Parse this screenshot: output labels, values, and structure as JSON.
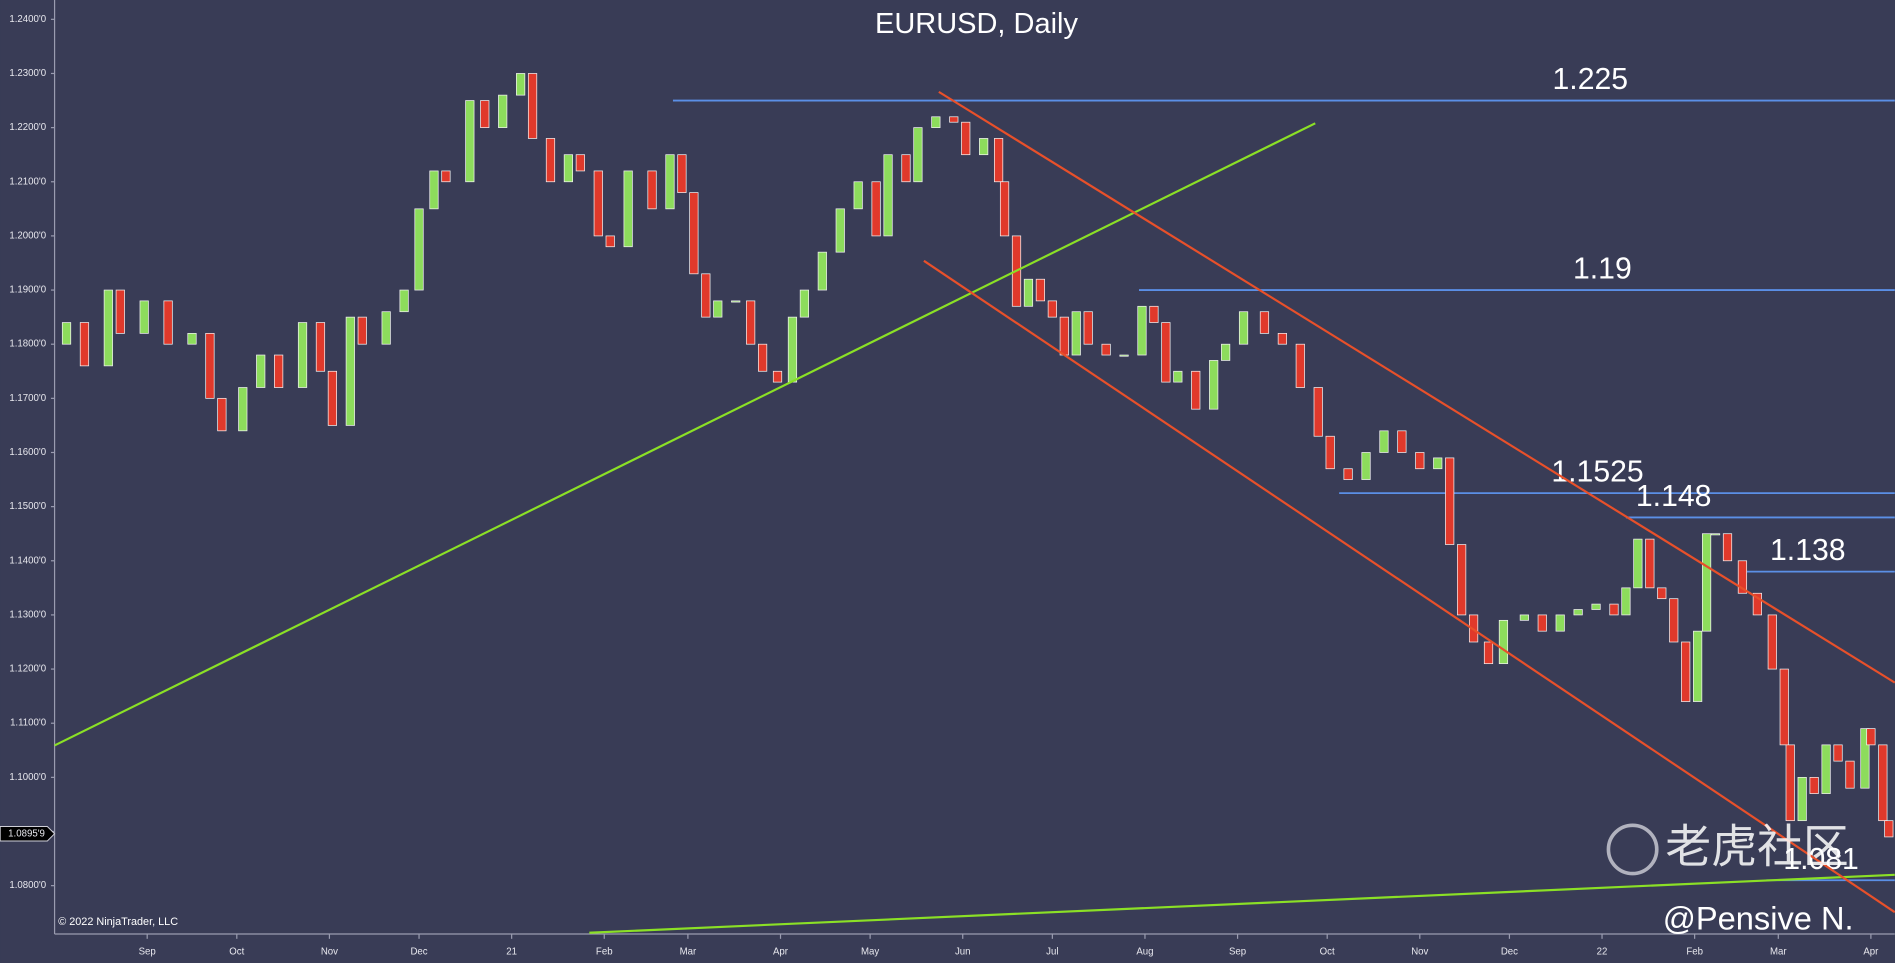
{
  "chart_data": {
    "type": "candlestick",
    "title": "EURUSD, Daily",
    "copyright": "© 2022 NinjaTrader, LLC",
    "watermark": "老虎社区",
    "author": "@Pensive N.",
    "up_color": "#8ddc5c",
    "down_color": "#e0392b",
    "level_color": "#5b8fe6",
    "x": [
      -27,
      -21,
      -13,
      -9,
      -1,
      7,
      15,
      21,
      25,
      32,
      38,
      44,
      52,
      58,
      62,
      68,
      72,
      80,
      86,
      91,
      96,
      100,
      108,
      113,
      119,
      125,
      129,
      135,
      141,
      145,
      151,
      155,
      161,
      169,
      175,
      179,
      183,
      187,
      191,
      197,
      202,
      206,
      211,
      216,
      220,
      226,
      232,
      238,
      244,
      248,
      254,
      258,
      264,
      270,
      274,
      280,
      285,
      287,
      291,
      295,
      299,
      303,
      307,
      311,
      315,
      321,
      327,
      333,
      337,
      341,
      345,
      351,
      357,
      361,
      367,
      374,
      380,
      386,
      392,
      396,
      402,
      408,
      414,
      420,
      426,
      432,
      436,
      440,
      444,
      449,
      454,
      461,
      467,
      473,
      479,
      485,
      491,
      495,
      499,
      503,
      507,
      511,
      515,
      519,
      522,
      525,
      529,
      534,
      539,
      544,
      548,
      550,
      554,
      558,
      562,
      566,
      570,
      575,
      577,
      581,
      583
    ],
    "open": [
      1.18,
      1.184,
      1.176,
      1.19,
      1.182,
      1.188,
      1.18,
      1.182,
      1.17,
      1.164,
      1.172,
      1.178,
      1.172,
      1.184,
      1.175,
      1.165,
      1.185,
      1.18,
      1.186,
      1.19,
      1.205,
      1.212,
      1.21,
      1.225,
      1.22,
      1.226,
      1.23,
      1.218,
      1.21,
      1.215,
      1.212,
      1.2,
      1.198,
      1.212,
      1.205,
      1.215,
      1.208,
      1.193,
      1.185,
      1.188,
      1.188,
      1.18,
      1.175,
      1.173,
      1.185,
      1.19,
      1.197,
      1.205,
      1.21,
      1.2,
      1.215,
      1.21,
      1.22,
      1.222,
      1.221,
      1.215,
      1.218,
      1.21,
      1.2,
      1.187,
      1.192,
      1.188,
      1.185,
      1.178,
      1.186,
      1.18,
      1.178,
      1.178,
      1.187,
      1.184,
      1.173,
      1.175,
      1.168,
      1.177,
      1.18,
      1.186,
      1.182,
      1.18,
      1.172,
      1.163,
      1.157,
      1.155,
      1.16,
      1.164,
      1.16,
      1.157,
      1.159,
      1.143,
      1.13,
      1.125,
      1.121,
      1.129,
      1.13,
      1.127,
      1.13,
      1.131,
      1.132,
      1.13,
      1.135,
      1.144,
      1.135,
      1.133,
      1.125,
      1.114,
      1.127,
      1.145,
      1.145,
      1.14,
      1.134,
      1.13,
      1.12,
      1.106,
      1.092,
      1.1,
      1.097,
      1.106,
      1.103,
      1.098,
      1.109,
      1.106,
      1.092
    ],
    "close": [
      1.184,
      1.176,
      1.19,
      1.182,
      1.188,
      1.18,
      1.182,
      1.17,
      1.164,
      1.172,
      1.178,
      1.172,
      1.184,
      1.175,
      1.165,
      1.185,
      1.18,
      1.186,
      1.19,
      1.205,
      1.212,
      1.21,
      1.225,
      1.22,
      1.226,
      1.23,
      1.218,
      1.21,
      1.215,
      1.212,
      1.2,
      1.198,
      1.212,
      1.205,
      1.215,
      1.208,
      1.193,
      1.185,
      1.188,
      1.188,
      1.18,
      1.175,
      1.173,
      1.185,
      1.19,
      1.197,
      1.205,
      1.21,
      1.2,
      1.215,
      1.21,
      1.22,
      1.222,
      1.221,
      1.215,
      1.218,
      1.21,
      1.2,
      1.187,
      1.192,
      1.188,
      1.185,
      1.178,
      1.186,
      1.18,
      1.178,
      1.178,
      1.187,
      1.184,
      1.173,
      1.175,
      1.168,
      1.177,
      1.18,
      1.186,
      1.182,
      1.18,
      1.172,
      1.163,
      1.157,
      1.155,
      1.16,
      1.164,
      1.16,
      1.157,
      1.159,
      1.143,
      1.13,
      1.125,
      1.121,
      1.129,
      1.13,
      1.127,
      1.13,
      1.131,
      1.132,
      1.13,
      1.135,
      1.144,
      1.135,
      1.133,
      1.125,
      1.114,
      1.127,
      1.145,
      1.145,
      1.14,
      1.134,
      1.13,
      1.12,
      1.106,
      1.092,
      1.1,
      1.097,
      1.106,
      1.103,
      1.098,
      1.109,
      1.106,
      1.092,
      1.089
    ],
    "xlim": [
      -31,
      585
    ],
    "ylim": [
      1.07107,
      1.24357
    ],
    "xticks": [
      {
        "value": 0,
        "label": "Sep"
      },
      {
        "value": 30,
        "label": "Oct"
      },
      {
        "value": 61,
        "label": "Nov"
      },
      {
        "value": 91,
        "label": "Dec"
      },
      {
        "value": 122,
        "label": "21"
      },
      {
        "value": 153,
        "label": "Feb"
      },
      {
        "value": 181,
        "label": "Mar"
      },
      {
        "value": 212,
        "label": "Apr"
      },
      {
        "value": 242,
        "label": "May"
      },
      {
        "value": 273,
        "label": "Jun"
      },
      {
        "value": 303,
        "label": "Jul"
      },
      {
        "value": 334,
        "label": "Aug"
      },
      {
        "value": 365,
        "label": "Sep"
      },
      {
        "value": 395,
        "label": "Oct"
      },
      {
        "value": 426,
        "label": "Nov"
      },
      {
        "value": 456,
        "label": "Dec"
      },
      {
        "value": 487,
        "label": "22"
      },
      {
        "value": 518,
        "label": "Feb"
      },
      {
        "value": 546,
        "label": "Mar"
      },
      {
        "value": 577,
        "label": "Apr"
      }
    ],
    "yticks": [
      {
        "value": 1.08,
        "label": "1.0800'0"
      },
      {
        "value": 1.09,
        "label": "1.0900'0"
      },
      {
        "value": 1.1,
        "label": "1.1000'0"
      },
      {
        "value": 1.11,
        "label": "1.1100'0"
      },
      {
        "value": 1.12,
        "label": "1.1200'0"
      },
      {
        "value": 1.13,
        "label": "1.1300'0"
      },
      {
        "value": 1.14,
        "label": "1.1400'0"
      },
      {
        "value": 1.15,
        "label": "1.1500'0"
      },
      {
        "value": 1.16,
        "label": "1.1600'0"
      },
      {
        "value": 1.17,
        "label": "1.1700'0"
      },
      {
        "value": 1.18,
        "label": "1.1800'0"
      },
      {
        "value": 1.19,
        "label": "1.1900'0"
      },
      {
        "value": 1.2,
        "label": "1.2000'0"
      },
      {
        "value": 1.21,
        "label": "1.2100'0"
      },
      {
        "value": 1.22,
        "label": "1.2200'0"
      },
      {
        "value": 1.23,
        "label": "1.2300'0"
      },
      {
        "value": 1.24,
        "label": "1.2400'0"
      }
    ],
    "current_price": {
      "value": 1.08959,
      "label": "1.0895'9"
    },
    "levels": [
      {
        "value": 1.225,
        "x_start": 176
      },
      {
        "value": 1.19,
        "x_start": 332
      },
      {
        "value": 1.1525,
        "x_start": 399
      },
      {
        "value": 1.148,
        "x_start": 495
      },
      {
        "value": 1.138,
        "x_start": 533
      },
      {
        "value": 1.081,
        "x_start": 542
      }
    ],
    "trendlines": [
      {
        "color": "#8be026",
        "x": [
          -31,
          391
        ],
        "y": [
          1.1059,
          1.2208
        ]
      },
      {
        "color": "#8be026",
        "x": [
          148,
          585
        ],
        "y": [
          1.0713,
          1.082
        ]
      },
      {
        "color": "#e8502a",
        "x": [
          265,
          585
        ],
        "y": [
          1.2266,
          1.1175
        ]
      },
      {
        "color": "#e8502a",
        "x": [
          260,
          585
        ],
        "y": [
          1.1954,
          1.0751
        ]
      }
    ]
  }
}
